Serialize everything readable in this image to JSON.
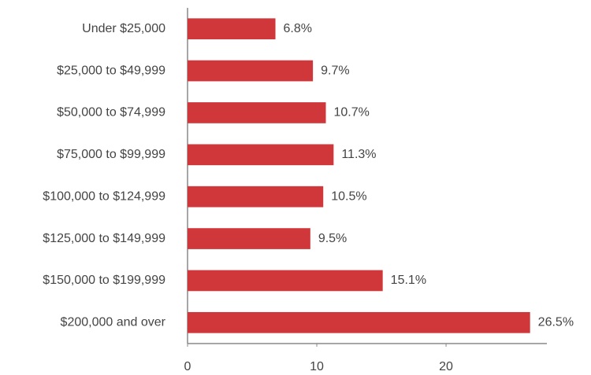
{
  "chart_data": {
    "type": "bar",
    "orientation": "horizontal",
    "categories": [
      "Under $25,000",
      "$25,000 to $49,999",
      "$50,000 to $74,999",
      "$75,000 to $99,999",
      "$100,000 to $124,999",
      "$125,000 to $149,999",
      "$150,000 to $199,999",
      "$200,000 and over"
    ],
    "values": [
      6.8,
      9.7,
      10.7,
      11.3,
      10.5,
      9.5,
      15.1,
      26.5
    ],
    "value_labels": [
      "6.8%",
      "9.7%",
      "10.7%",
      "11.3%",
      "10.5%",
      "9.5%",
      "15.1%",
      "26.5%"
    ],
    "color": "#d0373a",
    "xlim": [
      0,
      27.8
    ],
    "xticks": [
      0,
      10,
      20
    ],
    "grid": false
  }
}
